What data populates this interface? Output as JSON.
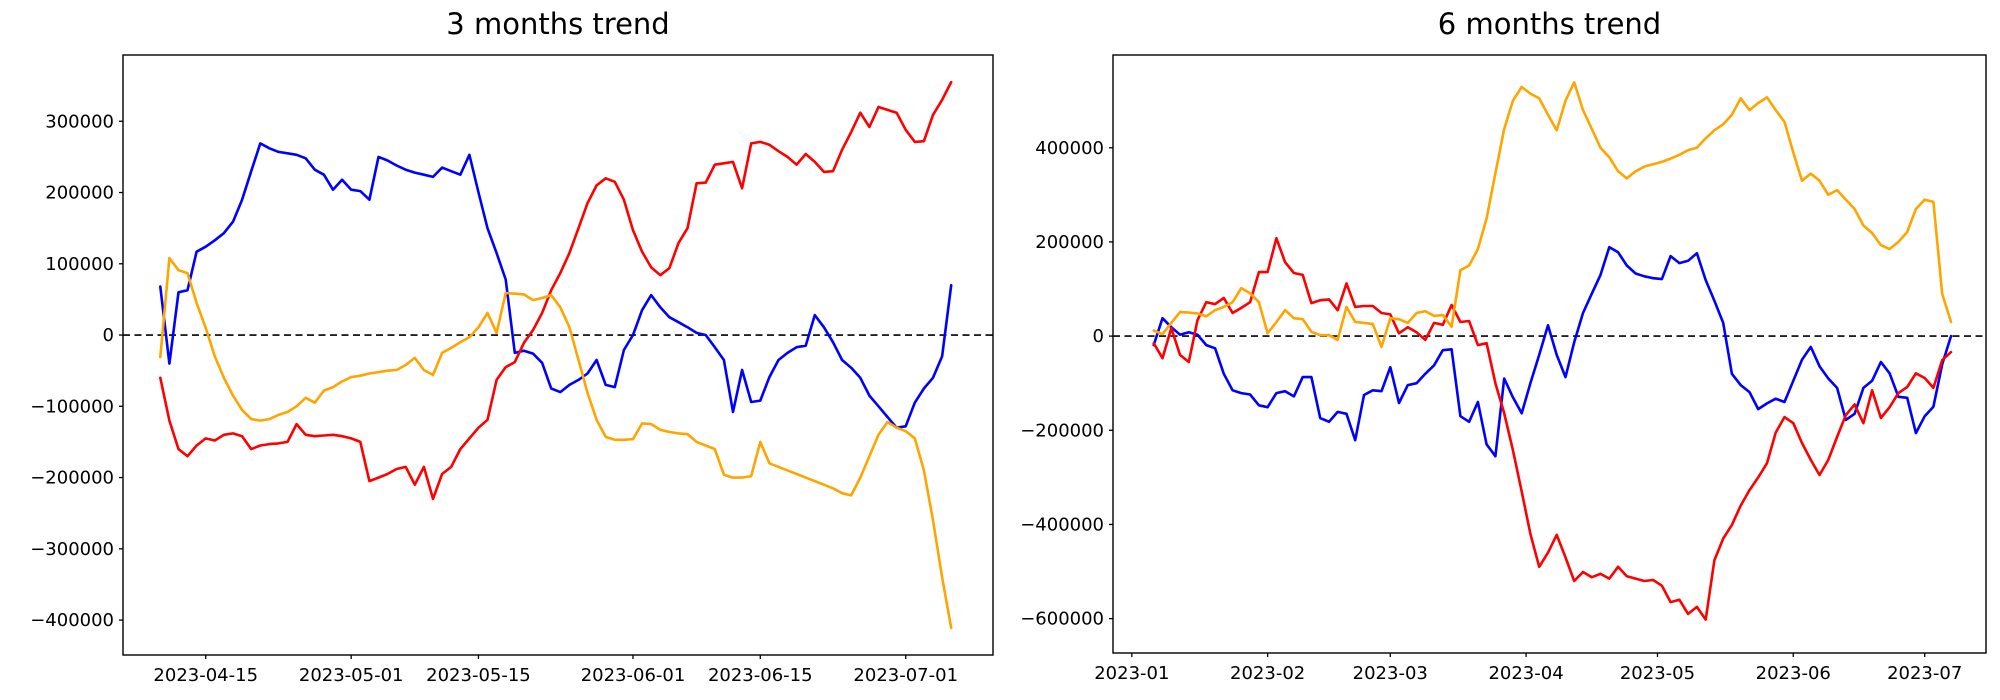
{
  "page": {
    "background": "#ffffff",
    "text_color": "#000000"
  },
  "chart_data": [
    {
      "id": "left-panel",
      "type": "line",
      "title": "3 months trend",
      "xlabel": "",
      "ylabel": "",
      "grid": false,
      "legend": "none",
      "zero_line": {
        "show": true,
        "color": "#000000",
        "style": "dashed"
      },
      "axis_color": "#000000",
      "value_scale": 1000,
      "x_unit": "days_since_2023-04-10",
      "xlim": [
        -4.1,
        91.6
      ],
      "ylim": [
        -449000,
        393000
      ],
      "yticks": [
        300000,
        200000,
        100000,
        0,
        -100000,
        -200000,
        -300000,
        -400000
      ],
      "xticks": [
        {
          "pos": 5,
          "label": "2023-04-15"
        },
        {
          "pos": 21,
          "label": "2023-05-01"
        },
        {
          "pos": 35,
          "label": "2023-05-15"
        },
        {
          "pos": 52,
          "label": "2023-06-01"
        },
        {
          "pos": 66,
          "label": "2023-06-15"
        },
        {
          "pos": 82,
          "label": "2023-07-01"
        }
      ],
      "series": [
        {
          "name": "blue",
          "color": "#0000ff",
          "start_day": 0,
          "step_days": 1,
          "values_k": [
            68,
            -40,
            60,
            63,
            117,
            124,
            133,
            143,
            159,
            190,
            230,
            269,
            262,
            257,
            255,
            253,
            248,
            232,
            225,
            204,
            218,
            204,
            202,
            190,
            250,
            245,
            238,
            232,
            228,
            225,
            222,
            235,
            230,
            225,
            253,
            200,
            150,
            115,
            78,
            -25,
            -22,
            -26,
            -39,
            -75,
            -80,
            -70,
            -63,
            -54,
            -35,
            -70,
            -73,
            -21,
            0,
            35,
            56,
            39,
            25,
            18,
            11,
            3,
            0,
            -17,
            -35,
            -108,
            -49,
            -94,
            -92,
            -59,
            -35,
            -25,
            -17,
            -15,
            28,
            11,
            -10,
            -35,
            -46,
            -60,
            -85,
            -100,
            -115,
            -130,
            -128,
            -95,
            -75,
            -60,
            -30,
            70
          ]
        },
        {
          "name": "red",
          "color": "#ff0000",
          "start_day": 0,
          "step_days": 1,
          "values_k": [
            -60,
            -120,
            -160,
            -170,
            -155,
            -145,
            -148,
            -140,
            -138,
            -142,
            -160,
            -155,
            -153,
            -152,
            -150,
            -125,
            -140,
            -142,
            -141,
            -140,
            -142,
            -145,
            -150,
            -205,
            -200,
            -195,
            -188,
            -185,
            -210,
            -185,
            -230,
            -195,
            -185,
            -160,
            -145,
            -130,
            -119,
            -63,
            -45,
            -38,
            -11,
            7,
            31,
            63,
            87,
            115,
            150,
            185,
            210,
            220,
            215,
            190,
            147,
            117,
            95,
            84,
            94,
            129,
            150,
            213,
            214,
            239,
            241,
            243,
            206,
            269,
            271,
            267,
            258,
            250,
            239,
            254,
            243,
            229,
            230,
            260,
            285,
            312,
            292,
            320,
            316,
            312,
            288,
            271,
            272,
            309,
            330,
            355
          ]
        },
        {
          "name": "orange",
          "color": "#ffa500",
          "start_day": 0,
          "step_days": 1,
          "values_k": [
            -31,
            108,
            91,
            87,
            45,
            10,
            -30,
            -60,
            -85,
            -105,
            -118,
            -120,
            -118,
            -112,
            -108,
            -100,
            -88,
            -95,
            -78,
            -73,
            -65,
            -59,
            -57,
            -54,
            -52,
            -50,
            -49,
            -42,
            -32,
            -49,
            -56,
            -25,
            -18,
            -10,
            -3,
            11,
            31,
            3,
            59,
            58,
            57,
            49,
            52,
            56,
            39,
            11,
            -35,
            -81,
            -119,
            -143,
            -147,
            -147,
            -146,
            -124,
            -125,
            -133,
            -136,
            -138,
            -139,
            -150,
            -155,
            -160,
            -196,
            -200,
            -200,
            -198,
            -150,
            -180,
            -185,
            -190,
            -195,
            -200,
            -205,
            -210,
            -215,
            -222,
            -225,
            -200,
            -170,
            -140,
            -122,
            -130,
            -135,
            -145,
            -190,
            -260,
            -340,
            -411
          ]
        }
      ]
    },
    {
      "id": "right-panel",
      "type": "line",
      "title": "6 months trend",
      "xlabel": "",
      "ylabel": "",
      "grid": false,
      "legend": "none",
      "zero_line": {
        "show": true,
        "color": "#000000",
        "style": "dashed"
      },
      "axis_color": "#000000",
      "value_scale": 1000,
      "x_unit": "days_since_2023-01-01",
      "xlim": [
        -4.3,
        195.0
      ],
      "ylim": [
        -673000,
        597000
      ],
      "yticks": [
        400000,
        200000,
        0,
        -200000,
        -400000,
        -600000
      ],
      "xticks": [
        {
          "pos": 0,
          "label": "2023-01"
        },
        {
          "pos": 31,
          "label": "2023-02"
        },
        {
          "pos": 59,
          "label": "2023-03"
        },
        {
          "pos": 90,
          "label": "2023-04"
        },
        {
          "pos": 120,
          "label": "2023-05"
        },
        {
          "pos": 151,
          "label": "2023-06"
        },
        {
          "pos": 181,
          "label": "2023-07"
        }
      ],
      "series": [
        {
          "name": "blue",
          "color": "#0000ff",
          "start_day": 5,
          "step_days": 2,
          "values_k": [
            -19,
            38,
            19,
            3,
            8,
            3,
            -19,
            -26,
            -80,
            -115,
            -121,
            -124,
            -147,
            -151,
            -121,
            -117,
            -128,
            -87,
            -87,
            -174,
            -182,
            -161,
            -165,
            -221,
            -125,
            -115,
            -117,
            -66,
            -142,
            -104,
            -100,
            -80,
            -62,
            -30,
            -28,
            -170,
            -182,
            -140,
            -230,
            -255,
            -90,
            -130,
            -164,
            -100,
            -40,
            23,
            -40,
            -87,
            -13,
            49,
            90,
            130,
            189,
            178,
            150,
            133,
            127,
            123,
            121,
            170,
            155,
            160,
            176,
            119,
            75,
            28,
            -80,
            -104,
            -119,
            -155,
            -143,
            -133,
            -140,
            -95,
            -50,
            -23,
            -64,
            -90,
            -110,
            -178,
            -165,
            -110,
            -95,
            -55,
            -79,
            -129,
            -131,
            -206,
            -170,
            -150,
            -60,
            0
          ]
        },
        {
          "name": "red",
          "color": "#ff0000",
          "start_day": 5,
          "step_days": 2,
          "values_k": [
            -15,
            -47,
            17,
            -40,
            -55,
            34,
            72,
            68,
            81,
            49,
            60,
            72,
            136,
            136,
            208,
            157,
            134,
            130,
            70,
            76,
            78,
            55,
            112,
            62,
            64,
            64,
            49,
            46,
            6,
            19,
            8,
            -8,
            28,
            24,
            66,
            30,
            32,
            -19,
            -15,
            -100,
            -164,
            -242,
            -330,
            -420,
            -490,
            -460,
            -422,
            -470,
            -520,
            -501,
            -512,
            -505,
            -515,
            -490,
            -510,
            -515,
            -520,
            -518,
            -530,
            -565,
            -560,
            -590,
            -575,
            -602,
            -476,
            -430,
            -401,
            -360,
            -327,
            -300,
            -270,
            -205,
            -172,
            -185,
            -227,
            -263,
            -295,
            -263,
            -214,
            -168,
            -145,
            -185,
            -115,
            -174,
            -151,
            -121,
            -108,
            -79,
            -89,
            -110,
            -51,
            -34
          ]
        },
        {
          "name": "orange",
          "color": "#ffa500",
          "start_day": 5,
          "step_days": 2,
          "values_k": [
            12,
            4,
            28,
            51,
            50,
            48,
            42,
            55,
            62,
            72,
            102,
            91,
            72,
            6,
            30,
            55,
            38,
            36,
            9,
            2,
            2,
            -8,
            62,
            30,
            28,
            26,
            -23,
            38,
            36,
            28,
            49,
            53,
            43,
            45,
            20,
            140,
            150,
            185,
            250,
            346,
            440,
            500,
            529,
            515,
            505,
            470,
            437,
            500,
            539,
            480,
            440,
            400,
            380,
            350,
            335,
            350,
            360,
            365,
            370,
            377,
            385,
            395,
            400,
            420,
            437,
            450,
            470,
            505,
            480,
            495,
            507,
            480,
            455,
            390,
            330,
            345,
            330,
            300,
            310,
            290,
            270,
            235,
            219,
            193,
            185,
            200,
            221,
            270,
            290,
            285,
            90,
            30
          ]
        }
      ]
    }
  ]
}
